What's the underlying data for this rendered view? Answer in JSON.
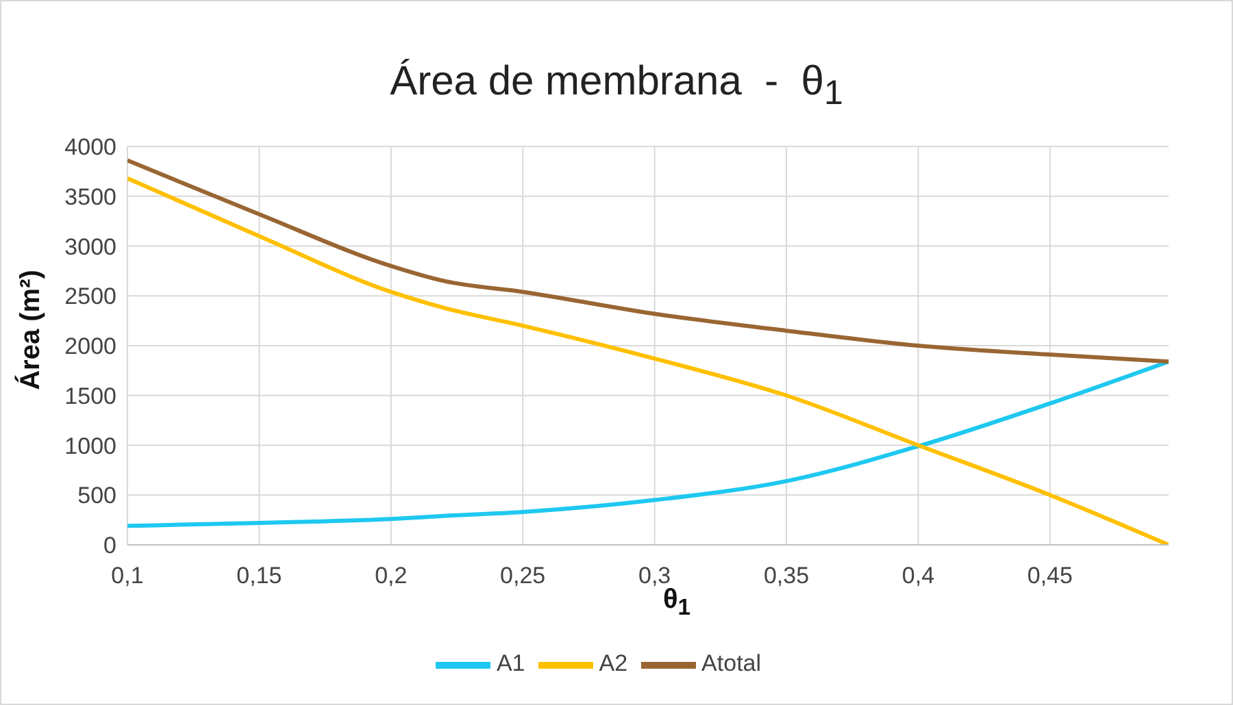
{
  "chart_data": {
    "type": "line",
    "title": "Área de membrana  -  θ$_{1}$",
    "xlabel": "θ$_{1}$",
    "ylabel": "Área (m²)",
    "x": [
      0.1,
      0.15,
      0.2,
      0.22,
      0.25,
      0.3,
      0.35,
      0.4,
      0.45,
      0.495
    ],
    "series": [
      {
        "name": "A1",
        "color": "#1ec8f0",
        "values": [
          190,
          220,
          260,
          290,
          330,
          450,
          640,
          990,
          1420,
          1840
        ]
      },
      {
        "name": "A2",
        "color": "#ffc000",
        "values": [
          3680,
          3100,
          2540,
          2380,
          2200,
          1870,
          1500,
          1000,
          500,
          0
        ]
      },
      {
        "name": "Atotal",
        "color": "#996633",
        "values": [
          3860,
          3320,
          2800,
          2650,
          2540,
          2320,
          2150,
          2000,
          1910,
          1840
        ]
      }
    ],
    "xlim": [
      0.1,
      0.495
    ],
    "xticks": [
      {
        "value": 0.1,
        "label": "0,1"
      },
      {
        "value": 0.15,
        "label": "0,15"
      },
      {
        "value": 0.2,
        "label": "0,2"
      },
      {
        "value": 0.25,
        "label": "0,25"
      },
      {
        "value": 0.3,
        "label": "0,3"
      },
      {
        "value": 0.35,
        "label": "0,35"
      },
      {
        "value": 0.4,
        "label": "0,4"
      },
      {
        "value": 0.45,
        "label": "0,45"
      }
    ],
    "ylim": [
      0,
      4000
    ],
    "yticks": [
      0,
      500,
      1000,
      1500,
      2000,
      2500,
      3000,
      3500,
      4000
    ],
    "grid": true,
    "legend": "bottom",
    "marker": "none",
    "line_style": "solid"
  }
}
